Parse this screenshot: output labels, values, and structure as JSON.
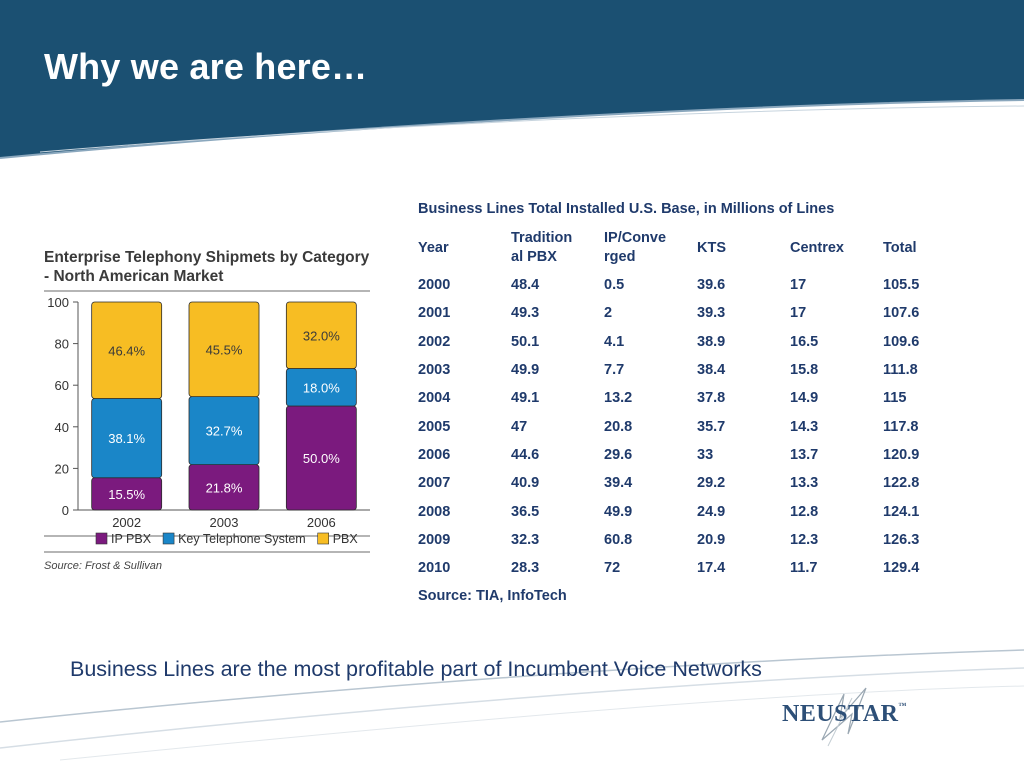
{
  "slide": {
    "title": "Why we are here…",
    "tagline": "Business Lines are the most profitable part of Incumbent  Voice Networks",
    "logo_text": "NeuStar",
    "logo_tm": "™"
  },
  "colors": {
    "header_bg": "#1b5072",
    "text_blue": "#1f3a6b",
    "ip_pbx": "#7b1a7e",
    "key_telephone": "#1a86c8",
    "pbx": "#f7bd23"
  },
  "left_chart": {
    "title": "Enterprise Telephony Shipmets by Category - North American Market",
    "source": "Source: Frost & Sullivan"
  },
  "chart_data": [
    {
      "type": "bar",
      "stacked": true,
      "title": "Enterprise Telephony Shipmets by Category - North American Market",
      "categories": [
        "2002",
        "2003",
        "2006"
      ],
      "series": [
        {
          "name": "IP PBX",
          "color": "#7b1a7e",
          "values": [
            15.5,
            21.8,
            50.0
          ],
          "labels": [
            "15.5%",
            "21.8%",
            "50.0%"
          ]
        },
        {
          "name": "Key Telephone System",
          "color": "#1a86c8",
          "values": [
            38.1,
            32.7,
            18.0
          ],
          "labels": [
            "38.1%",
            "32.7%",
            "18.0%"
          ]
        },
        {
          "name": "PBX",
          "color": "#f7bd23",
          "values": [
            46.4,
            45.5,
            32.0
          ],
          "labels": [
            "46.4%",
            "45.5%",
            "32.0%"
          ]
        }
      ],
      "ylim": [
        0,
        100
      ],
      "yticks": [
        0,
        20,
        40,
        60,
        80,
        100
      ],
      "legend": "bottom",
      "grid": false
    },
    {
      "type": "table",
      "title": "Business Lines Total Installed U.S. Base, in Millions of Lines",
      "columns": [
        "Year",
        "Traditional PBX",
        "IP/Converged",
        "KTS",
        "Centrex",
        "Total"
      ],
      "rows": [
        [
          "2000",
          "48.4",
          "0.5",
          "39.6",
          "17",
          "105.5"
        ],
        [
          "2001",
          "49.3",
          "2",
          "39.3",
          "17",
          "107.6"
        ],
        [
          "2002",
          "50.1",
          "4.1",
          "38.9",
          "16.5",
          "109.6"
        ],
        [
          "2003",
          "49.9",
          "7.7",
          "38.4",
          "15.8",
          "111.8"
        ],
        [
          "2004",
          "49.1",
          "13.2",
          "37.8",
          "14.9",
          "115"
        ],
        [
          "2005",
          "47",
          "20.8",
          "35.7",
          "14.3",
          "117.8"
        ],
        [
          "2006",
          "44.6",
          "29.6",
          "33",
          "13.7",
          "120.9"
        ],
        [
          "2007",
          "40.9",
          "39.4",
          "29.2",
          "13.3",
          "122.8"
        ],
        [
          "2008",
          "36.5",
          "49.9",
          "24.9",
          "12.8",
          "124.1"
        ],
        [
          "2009",
          "32.3",
          "60.8",
          "20.9",
          "12.3",
          "126.3"
        ],
        [
          "2010",
          "28.3",
          "72",
          "17.4",
          "11.7",
          "129.4"
        ]
      ],
      "source": "Source: TIA, InfoTech"
    }
  ]
}
